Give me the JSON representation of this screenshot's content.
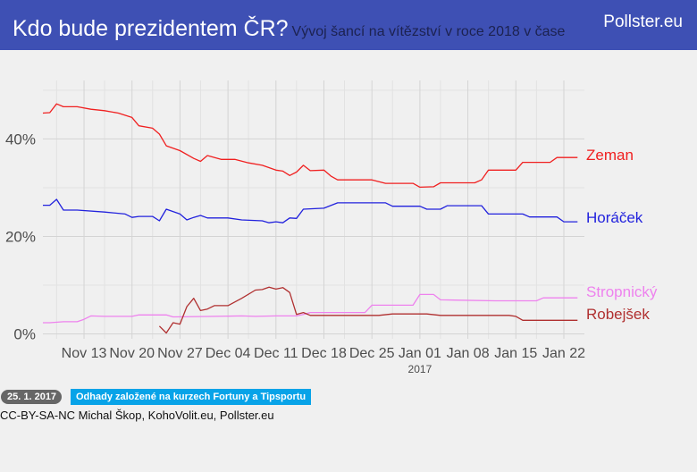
{
  "header": {
    "title": "Kdo bude prezidentem ČR?",
    "subtitle": "Vývoj šancí na vítězství v roce 2018 v čase",
    "brand": "Pollster.eu"
  },
  "footer": {
    "date_badge": "25. 1. 2017",
    "note_badge": "Odhady založené na kurzech Fortuny a Tipsportu",
    "credits": "CC-BY-SA-NC Michal Škop, KohoVolit.eu, Pollster.eu"
  },
  "chart_data": {
    "type": "line",
    "title": "Kdo bude prezidentem ČR?",
    "subtitle": "Vývoj šancí na vítězství v roce 2018 v čase",
    "x_tick_labels": [
      "Nov 13",
      "Nov 20",
      "Nov 27",
      "Dec 04",
      "Dec 11",
      "Dec 18",
      "Dec 25",
      "Jan 01",
      "Jan 08",
      "Jan 15",
      "Jan 22"
    ],
    "x_tick_dates": [
      "2016-11-13",
      "2016-11-20",
      "2016-11-27",
      "2016-12-04",
      "2016-12-11",
      "2016-12-18",
      "2016-12-25",
      "2017-01-01",
      "2017-01-08",
      "2017-01-15",
      "2017-01-22"
    ],
    "x_year_label": "2017",
    "x_year_label_date": "2017-01-01",
    "xlim": [
      "2016-11-07",
      "2017-01-25"
    ],
    "y_ticks": [
      0,
      20,
      40
    ],
    "y_tick_labels": [
      "0%",
      "20%",
      "40%"
    ],
    "ylim": [
      -1,
      52
    ],
    "grid": true,
    "legend": "direct labels at right end of lines",
    "series": [
      {
        "name": "Zeman",
        "color": "#f02020",
        "points": [
          [
            "2016-11-07",
            45.3
          ],
          [
            "2016-11-08",
            45.4
          ],
          [
            "2016-11-09",
            47.2
          ],
          [
            "2016-11-10",
            46.6
          ],
          [
            "2016-11-12",
            46.6
          ],
          [
            "2016-11-14",
            46.1
          ],
          [
            "2016-11-16",
            45.8
          ],
          [
            "2016-11-18",
            45.3
          ],
          [
            "2016-11-20",
            44.4
          ],
          [
            "2016-11-21",
            42.7
          ],
          [
            "2016-11-23",
            42.2
          ],
          [
            "2016-11-24",
            41.0
          ],
          [
            "2016-11-25",
            38.6
          ],
          [
            "2016-11-27",
            37.6
          ],
          [
            "2016-11-29",
            36.0
          ],
          [
            "2016-11-30",
            35.4
          ],
          [
            "2016-12-01",
            36.6
          ],
          [
            "2016-12-03",
            35.8
          ],
          [
            "2016-12-05",
            35.8
          ],
          [
            "2016-12-07",
            35.1
          ],
          [
            "2016-12-09",
            34.6
          ],
          [
            "2016-12-11",
            33.6
          ],
          [
            "2016-12-12",
            33.4
          ],
          [
            "2016-12-13",
            32.5
          ],
          [
            "2016-12-14",
            33.2
          ],
          [
            "2016-12-15",
            34.6
          ],
          [
            "2016-12-16",
            33.5
          ],
          [
            "2016-12-18",
            33.6
          ],
          [
            "2016-12-19",
            32.4
          ],
          [
            "2016-12-20",
            31.6
          ],
          [
            "2016-12-25",
            31.6
          ],
          [
            "2016-12-27",
            30.9
          ],
          [
            "2016-12-31",
            30.9
          ],
          [
            "2017-01-01",
            30.1
          ],
          [
            "2017-01-03",
            30.2
          ],
          [
            "2017-01-04",
            31.0
          ],
          [
            "2017-01-09",
            31.0
          ],
          [
            "2017-01-10",
            31.6
          ],
          [
            "2017-01-11",
            33.6
          ],
          [
            "2017-01-15",
            33.6
          ],
          [
            "2017-01-16",
            35.2
          ],
          [
            "2017-01-20",
            35.2
          ],
          [
            "2017-01-21",
            36.2
          ],
          [
            "2017-01-24",
            36.2
          ]
        ]
      },
      {
        "name": "Horáček",
        "color": "#2222dd",
        "points": [
          [
            "2016-11-07",
            26.4
          ],
          [
            "2016-11-08",
            26.4
          ],
          [
            "2016-11-09",
            27.6
          ],
          [
            "2016-11-10",
            25.4
          ],
          [
            "2016-11-12",
            25.4
          ],
          [
            "2016-11-16",
            25.0
          ],
          [
            "2016-11-19",
            24.6
          ],
          [
            "2016-11-20",
            23.9
          ],
          [
            "2016-11-21",
            24.1
          ],
          [
            "2016-11-23",
            24.1
          ],
          [
            "2016-11-24",
            23.2
          ],
          [
            "2016-11-25",
            25.6
          ],
          [
            "2016-11-27",
            24.6
          ],
          [
            "2016-11-28",
            23.4
          ],
          [
            "2016-11-29",
            23.9
          ],
          [
            "2016-11-30",
            24.3
          ],
          [
            "2016-12-01",
            23.8
          ],
          [
            "2016-12-04",
            23.8
          ],
          [
            "2016-12-06",
            23.4
          ],
          [
            "2016-12-09",
            23.2
          ],
          [
            "2016-12-10",
            22.8
          ],
          [
            "2016-12-11",
            23.0
          ],
          [
            "2016-12-12",
            22.8
          ],
          [
            "2016-12-13",
            23.8
          ],
          [
            "2016-12-14",
            23.7
          ],
          [
            "2016-12-15",
            25.6
          ],
          [
            "2016-12-18",
            25.8
          ],
          [
            "2016-12-20",
            26.9
          ],
          [
            "2016-12-27",
            26.9
          ],
          [
            "2016-12-28",
            26.2
          ],
          [
            "2017-01-01",
            26.2
          ],
          [
            "2017-01-02",
            25.6
          ],
          [
            "2017-01-04",
            25.6
          ],
          [
            "2017-01-05",
            26.3
          ],
          [
            "2017-01-10",
            26.3
          ],
          [
            "2017-01-11",
            24.6
          ],
          [
            "2017-01-16",
            24.6
          ],
          [
            "2017-01-17",
            24.0
          ],
          [
            "2017-01-21",
            24.0
          ],
          [
            "2017-01-22",
            23.0
          ],
          [
            "2017-01-24",
            23.0
          ]
        ]
      },
      {
        "name": "Stropnický",
        "color": "#ee82ee",
        "points": [
          [
            "2016-11-07",
            2.3
          ],
          [
            "2016-11-08",
            2.3
          ],
          [
            "2016-11-10",
            2.5
          ],
          [
            "2016-11-12",
            2.5
          ],
          [
            "2016-11-13",
            3.0
          ],
          [
            "2016-11-14",
            3.7
          ],
          [
            "2016-11-16",
            3.6
          ],
          [
            "2016-11-20",
            3.6
          ],
          [
            "2016-11-21",
            3.9
          ],
          [
            "2016-11-25",
            3.9
          ],
          [
            "2016-11-26",
            3.5
          ],
          [
            "2016-12-02",
            3.6
          ],
          [
            "2016-12-06",
            3.7
          ],
          [
            "2016-12-08",
            3.6
          ],
          [
            "2016-12-11",
            3.7
          ],
          [
            "2016-12-14",
            3.7
          ],
          [
            "2016-12-15",
            4.0
          ],
          [
            "2016-12-16",
            4.4
          ],
          [
            "2016-12-24",
            4.4
          ],
          [
            "2016-12-25",
            5.9
          ],
          [
            "2016-12-31",
            5.9
          ],
          [
            "2017-01-01",
            8.1
          ],
          [
            "2017-01-03",
            8.1
          ],
          [
            "2017-01-04",
            7.0
          ],
          [
            "2017-01-12",
            6.8
          ],
          [
            "2017-01-18",
            6.8
          ],
          [
            "2017-01-19",
            7.4
          ],
          [
            "2017-01-24",
            7.4
          ]
        ]
      },
      {
        "name": "Robejšek",
        "color": "#b03030",
        "points": [
          [
            "2016-11-24",
            1.6
          ],
          [
            "2016-11-25",
            0.2
          ],
          [
            "2016-11-26",
            2.3
          ],
          [
            "2016-11-27",
            2.0
          ],
          [
            "2016-11-28",
            5.6
          ],
          [
            "2016-11-29",
            7.3
          ],
          [
            "2016-11-30",
            4.8
          ],
          [
            "2016-12-01",
            5.1
          ],
          [
            "2016-12-02",
            5.8
          ],
          [
            "2016-12-04",
            5.8
          ],
          [
            "2016-12-06",
            7.3
          ],
          [
            "2016-12-08",
            9.0
          ],
          [
            "2016-12-09",
            9.1
          ],
          [
            "2016-12-10",
            9.6
          ],
          [
            "2016-12-11",
            9.2
          ],
          [
            "2016-12-12",
            9.5
          ],
          [
            "2016-12-13",
            8.5
          ],
          [
            "2016-12-14",
            4.0
          ],
          [
            "2016-12-15",
            4.4
          ],
          [
            "2016-12-16",
            3.8
          ],
          [
            "2016-12-26",
            3.8
          ],
          [
            "2016-12-28",
            4.1
          ],
          [
            "2017-01-02",
            4.1
          ],
          [
            "2017-01-04",
            3.8
          ],
          [
            "2017-01-14",
            3.8
          ],
          [
            "2017-01-15",
            3.6
          ],
          [
            "2017-01-16",
            2.8
          ],
          [
            "2017-01-24",
            2.8
          ]
        ]
      }
    ]
  }
}
